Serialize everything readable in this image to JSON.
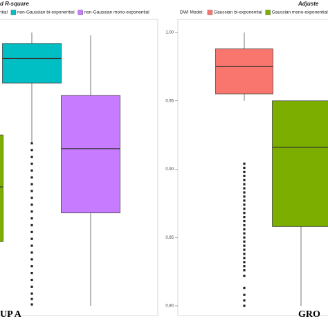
{
  "chart_data": [
    {
      "type": "box",
      "title": "d R-square",
      "group_label": "UP A",
      "ylim": [
        0.7934,
        1.0086
      ],
      "series": [
        {
          "name": "ntial",
          "color": "#7cae00",
          "q1": 0.847,
          "median": 0.887,
          "q3": 0.925
        },
        {
          "name": "non-Gaussian bi-exponential",
          "color": "#00bfc4",
          "whisker_low": 0.92,
          "q1": 0.963,
          "median": 0.981,
          "q3": 0.992,
          "whisker_high": 1.0,
          "outliers": [
            0.919,
            0.914,
            0.909,
            0.904,
            0.899,
            0.894,
            0.889,
            0.884,
            0.879,
            0.874,
            0.869,
            0.864,
            0.859,
            0.854,
            0.849,
            0.844,
            0.839,
            0.834,
            0.829,
            0.824,
            0.819,
            0.814,
            0.809,
            0.805,
            0.801
          ]
        },
        {
          "name": "non-Gaussian mono-exponential",
          "color": "#c77cff",
          "whisker_low": 0.8,
          "q1": 0.868,
          "median": 0.915,
          "q3": 0.954,
          "whisker_high": 0.998
        }
      ]
    },
    {
      "type": "box",
      "title": "Adjuste",
      "group_label": "GRO",
      "legend_title": "DWI Model:",
      "ylim": [
        0.7934,
        1.0086
      ],
      "yticks": [
        {
          "value": 0.8,
          "label": "0.80"
        },
        {
          "value": 0.85,
          "label": "0.85"
        },
        {
          "value": 0.9,
          "label": "0.90"
        },
        {
          "value": 0.95,
          "label": "0.95"
        },
        {
          "value": 1.0,
          "label": "1.00"
        }
      ],
      "series": [
        {
          "name": "Gaussian bi-exponential",
          "color": "#f8766d",
          "whisker_low": 0.95,
          "q1": 0.955,
          "median": 0.975,
          "q3": 0.988,
          "whisker_high": 1.0,
          "outliers": [
            0.904,
            0.901,
            0.898,
            0.895,
            0.892,
            0.889,
            0.886,
            0.883,
            0.88,
            0.877,
            0.874,
            0.871,
            0.868,
            0.865,
            0.862,
            0.859,
            0.856,
            0.853,
            0.85,
            0.847,
            0.844,
            0.841,
            0.838,
            0.835,
            0.832,
            0.829,
            0.826,
            0.822,
            0.813,
            0.808,
            0.804,
            0.8
          ]
        },
        {
          "name": "Gaussian mono-exponential",
          "color": "#7cae00",
          "whisker_low": 0.8,
          "q1": 0.858,
          "median": 0.916,
          "q3": 0.95
        }
      ]
    }
  ]
}
